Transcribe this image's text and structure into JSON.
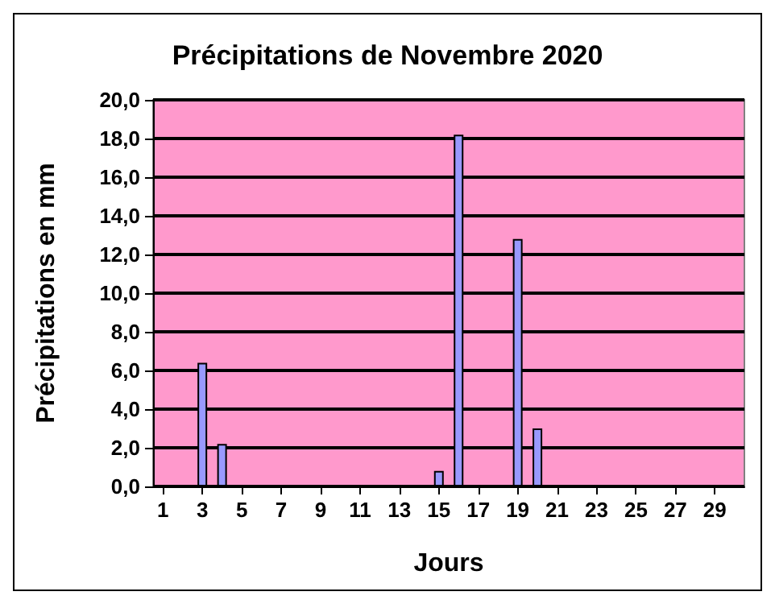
{
  "chart_data": {
    "type": "bar",
    "title": "Précipitations de Novembre 2020",
    "xlabel": "Jours",
    "ylabel": "Précipitations en mm",
    "x": [
      3,
      4,
      15,
      16,
      19,
      20
    ],
    "values": [
      6.4,
      2.2,
      0.8,
      18.2,
      12.8,
      3.0
    ],
    "color": "#9999ff",
    "xlim": [
      0.5,
      30.5
    ],
    "xticks": [
      1,
      3,
      5,
      7,
      9,
      11,
      13,
      15,
      17,
      19,
      21,
      23,
      25,
      27,
      29
    ],
    "ylim": [
      0,
      20
    ],
    "yticks": [
      {
        "value": 0,
        "label": "0,0"
      },
      {
        "value": 2,
        "label": "2,0"
      },
      {
        "value": 4,
        "label": "4,0"
      },
      {
        "value": 6,
        "label": "6,0"
      },
      {
        "value": 8,
        "label": "8,0"
      },
      {
        "value": 10,
        "label": "10,0"
      },
      {
        "value": 12,
        "label": "12,0"
      },
      {
        "value": 14,
        "label": "14,0"
      },
      {
        "value": 16,
        "label": "16,0"
      },
      {
        "value": 18,
        "label": "18,0"
      },
      {
        "value": 20,
        "label": "20,0"
      }
    ],
    "grid": "y"
  }
}
